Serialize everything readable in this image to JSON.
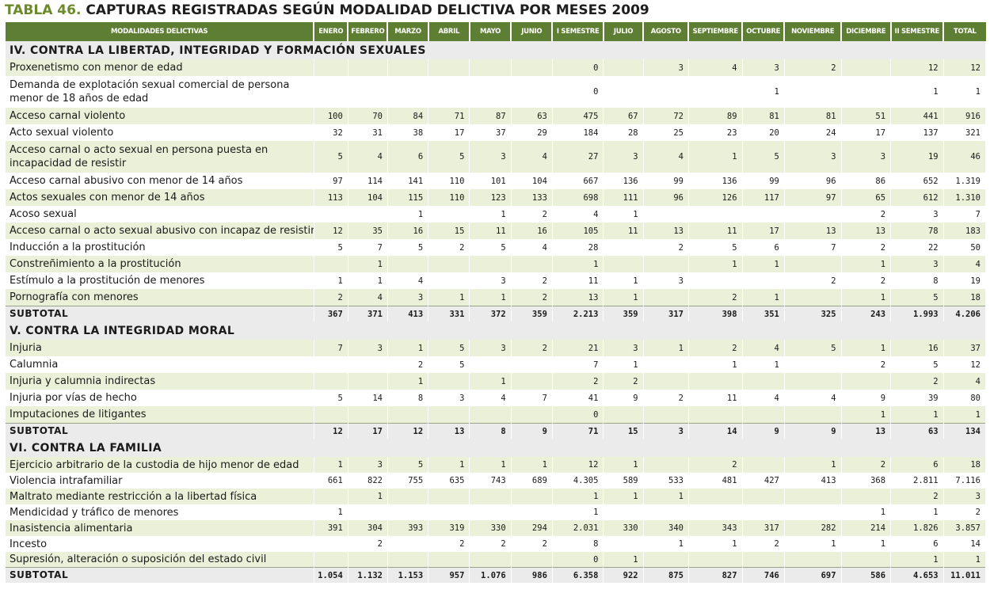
{
  "title": {
    "label": "TABLA 46.",
    "text": "CAPTURAS REGISTRADAS SEGÚN MODALIDAD DELICTIVA POR MESES 2009"
  },
  "columns": [
    "MODALIDADES DELICTIVAS",
    "ENERO",
    "FEBRERO",
    "MARZO",
    "ABRIL",
    "MAYO",
    "JUNIO",
    "I SEMESTRE",
    "JULIO",
    "AGOSTO",
    "SEPTIEMBRE",
    "OCTUBRE",
    "NOVIEMBRE",
    "DICIEMBRE",
    "II SEMESTRE",
    "TOTAL"
  ],
  "sections": [
    {
      "title": "IV. CONTRA LA LIBERTAD, INTEGRIDAD Y FORMACIÓN SEXUALES",
      "rows": [
        {
          "label": "Proxenetismo con menor de edad",
          "values": [
            "",
            "",
            "",
            "",
            "",
            "",
            "0",
            "",
            "3",
            "4",
            "3",
            "2",
            "",
            "12",
            "12"
          ]
        },
        {
          "label": "Demanda de explotación sexual comercial de persona menor de 18 años de edad",
          "values": [
            "",
            "",
            "",
            "",
            "",
            "",
            "0",
            "",
            "",
            "",
            "1",
            "",
            "",
            "1",
            "1"
          ]
        },
        {
          "label": "Acceso carnal violento",
          "values": [
            "100",
            "70",
            "84",
            "71",
            "87",
            "63",
            "475",
            "67",
            "72",
            "89",
            "81",
            "81",
            "51",
            "441",
            "916"
          ]
        },
        {
          "label": "Acto sexual violento",
          "values": [
            "32",
            "31",
            "38",
            "17",
            "37",
            "29",
            "184",
            "28",
            "25",
            "23",
            "20",
            "24",
            "17",
            "137",
            "321"
          ]
        },
        {
          "label": "Acceso carnal o acto sexual en persona puesta en incapacidad de resistir",
          "values": [
            "5",
            "4",
            "6",
            "5",
            "3",
            "4",
            "27",
            "3",
            "4",
            "1",
            "5",
            "3",
            "3",
            "19",
            "46"
          ]
        },
        {
          "label": "Acceso carnal abusivo con menor de 14 años",
          "values": [
            "97",
            "114",
            "141",
            "110",
            "101",
            "104",
            "667",
            "136",
            "99",
            "136",
            "99",
            "96",
            "86",
            "652",
            "1.319"
          ]
        },
        {
          "label": "Actos sexuales con menor de 14 años",
          "values": [
            "113",
            "104",
            "115",
            "110",
            "123",
            "133",
            "698",
            "111",
            "96",
            "126",
            "117",
            "97",
            "65",
            "612",
            "1.310"
          ]
        },
        {
          "label": "Acoso sexual",
          "values": [
            "",
            "",
            "1",
            "",
            "1",
            "2",
            "4",
            "1",
            "",
            "",
            "",
            "",
            "2",
            "3",
            "7"
          ]
        },
        {
          "label": "Acceso carnal o acto sexual abusivo con incapaz de resistir",
          "values": [
            "12",
            "35",
            "16",
            "15",
            "11",
            "16",
            "105",
            "11",
            "13",
            "11",
            "17",
            "13",
            "13",
            "78",
            "183"
          ]
        },
        {
          "label": "Inducción a la prostitución",
          "values": [
            "5",
            "7",
            "5",
            "2",
            "5",
            "4",
            "28",
            "",
            "2",
            "5",
            "6",
            "7",
            "2",
            "22",
            "50"
          ]
        },
        {
          "label": "Constreñimiento a la prostitución",
          "values": [
            "",
            "1",
            "",
            "",
            "",
            "",
            "1",
            "",
            "",
            "1",
            "1",
            "",
            "1",
            "3",
            "4"
          ]
        },
        {
          "label": "Estímulo a la prostitución de menores",
          "values": [
            "1",
            "1",
            "4",
            "",
            "3",
            "2",
            "11",
            "1",
            "3",
            "",
            "",
            "2",
            "2",
            "8",
            "19"
          ]
        },
        {
          "label": "Pornografía con menores",
          "values": [
            "2",
            "4",
            "3",
            "1",
            "1",
            "2",
            "13",
            "1",
            "",
            "2",
            "1",
            "",
            "1",
            "5",
            "18"
          ]
        }
      ],
      "subtotal": {
        "label": "SUBTOTAL",
        "values": [
          "367",
          "371",
          "413",
          "331",
          "372",
          "359",
          "2.213",
          "359",
          "317",
          "398",
          "351",
          "325",
          "243",
          "1.993",
          "4.206"
        ]
      }
    },
    {
      "title": "V.  CONTRA  LA INTEGRIDAD MORAL",
      "rows": [
        {
          "label": "Injuria",
          "values": [
            "7",
            "3",
            "1",
            "5",
            "3",
            "2",
            "21",
            "3",
            "1",
            "2",
            "4",
            "5",
            "1",
            "16",
            "37"
          ]
        },
        {
          "label": "Calumnia",
          "values": [
            "",
            "",
            "2",
            "5",
            "",
            "",
            "7",
            "1",
            "",
            "1",
            "1",
            "",
            "2",
            "5",
            "12"
          ]
        },
        {
          "label": "Injuria y calumnia indirectas",
          "values": [
            "",
            "",
            "1",
            "",
            "1",
            "",
            "2",
            "2",
            "",
            "",
            "",
            "",
            "",
            "2",
            "4"
          ]
        },
        {
          "label": "Injuria por vías de hecho",
          "values": [
            "5",
            "14",
            "8",
            "3",
            "4",
            "7",
            "41",
            "9",
            "2",
            "11",
            "4",
            "4",
            "9",
            "39",
            "80"
          ]
        },
        {
          "label": "Imputaciones de litigantes",
          "values": [
            "",
            "",
            "",
            "",
            "",
            "",
            "0",
            "",
            "",
            "",
            "",
            "",
            "1",
            "1",
            "1"
          ]
        }
      ],
      "subtotal": {
        "label": "SUBTOTAL",
        "values": [
          "12",
          "17",
          "12",
          "13",
          "8",
          "9",
          "71",
          "15",
          "3",
          "14",
          "9",
          "9",
          "13",
          "63",
          "134"
        ]
      }
    },
    {
      "title": "VI. CONTRA LA FAMILIA",
      "rows": [
        {
          "label": "Ejercicio arbitrario de la custodia de hijo menor de edad",
          "values": [
            "1",
            "3",
            "5",
            "1",
            "1",
            "1",
            "12",
            "1",
            "",
            "2",
            "",
            "1",
            "2",
            "6",
            "18"
          ]
        },
        {
          "label": "Violencia intrafamiliar",
          "values": [
            "661",
            "822",
            "755",
            "635",
            "743",
            "689",
            "4.305",
            "589",
            "533",
            "481",
            "427",
            "413",
            "368",
            "2.811",
            "7.116"
          ]
        },
        {
          "label": "Maltrato mediante restricción a la libertad física",
          "values": [
            "",
            "1",
            "",
            "",
            "",
            "",
            "1",
            "1",
            "1",
            "",
            "",
            "",
            "",
            "2",
            "3"
          ]
        },
        {
          "label": "Mendicidad y tráfico de menores",
          "values": [
            "1",
            "",
            "",
            "",
            "",
            "",
            "1",
            "",
            "",
            "",
            "",
            "",
            "1",
            "1",
            "2"
          ]
        },
        {
          "label": "Inasistencia alimentaria",
          "values": [
            "391",
            "304",
            "393",
            "319",
            "330",
            "294",
            "2.031",
            "330",
            "340",
            "343",
            "317",
            "282",
            "214",
            "1.826",
            "3.857"
          ]
        },
        {
          "label": "Incesto",
          "values": [
            "",
            "2",
            "",
            "2",
            "2",
            "2",
            "8",
            "",
            "1",
            "1",
            "2",
            "1",
            "1",
            "6",
            "14"
          ]
        },
        {
          "label": "Supresión, alteración o suposición del estado civil",
          "values": [
            "",
            "",
            "",
            "",
            "",
            "",
            "0",
            "1",
            "",
            "",
            "",
            "",
            "",
            "1",
            "1"
          ]
        }
      ],
      "subtotal": {
        "label": "SUBTOTAL",
        "values": [
          "1.054",
          "1.132",
          "1.153",
          "957",
          "1.076",
          "986",
          "6.358",
          "922",
          "875",
          "827",
          "746",
          "697",
          "586",
          "4.653",
          "11.011"
        ]
      }
    }
  ]
}
